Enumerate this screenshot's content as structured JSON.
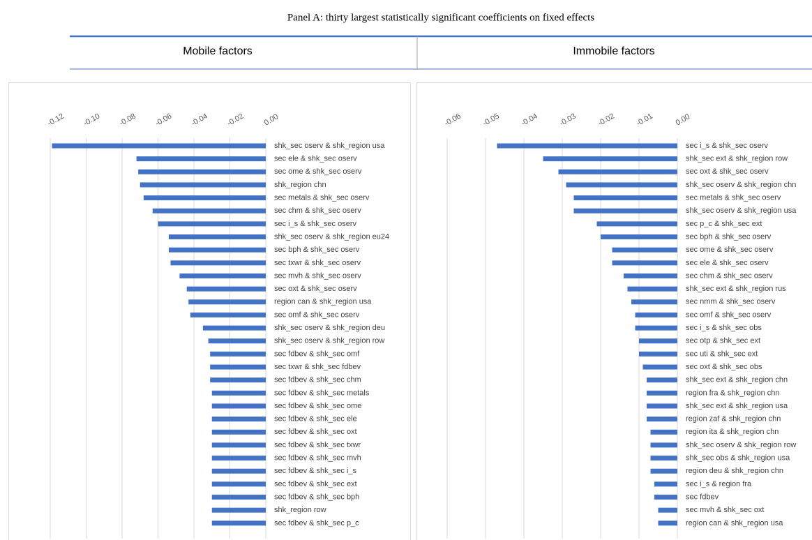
{
  "title": "Panel A: thirty largest statistically significant coefficients on fixed effects",
  "chart_data": [
    {
      "type": "bar",
      "orientation": "horizontal",
      "title": "Mobile factors",
      "color": "#4472c4",
      "grid": true,
      "xlim": [
        -0.12,
        0
      ],
      "xticks": [
        -0.12,
        {
          "value": -0.1,
          "label": "-0.10"
        },
        -0.08,
        -0.06,
        -0.04,
        -0.02,
        {
          "value": 0,
          "label": "0.00"
        }
      ],
      "categories": [
        "shk_sec oserv & shk_region usa",
        "sec ele & shk_sec oserv",
        "sec ome & shk_sec oserv",
        "shk_region chn",
        "sec metals & shk_sec oserv",
        "sec chm & shk_sec oserv",
        "sec i_s & shk_sec oserv",
        "shk_sec oserv & shk_region eu24",
        "sec bph & shk_sec oserv",
        "sec txwr & shk_sec oserv",
        "sec mvh & shk_sec oserv",
        "sec oxt & shk_sec oserv",
        "region can & shk_region usa",
        "sec omf & shk_sec oserv",
        "shk_sec oserv & shk_region deu",
        "shk_sec oserv & shk_region row",
        "sec fdbev & shk_sec omf",
        "sec txwr & shk_sec fdbev",
        "sec fdbev & shk_sec chm",
        "sec fdbev & shk_sec metals",
        "sec fdbev & shk_sec ome",
        "sec fdbev & shk_sec ele",
        "sec fdbev & shk_sec oxt",
        "sec fdbev & shk_sec txwr",
        "sec fdbev & shk_sec mvh",
        "sec fdbev & shk_sec i_s",
        "sec fdbev & shk_sec ext",
        "sec fdbev & shk_sec bph",
        "shk_region row",
        "sec fdbev & shk_sec p_c"
      ],
      "values": [
        -0.119,
        -0.072,
        -0.071,
        -0.07,
        -0.068,
        -0.063,
        -0.06,
        -0.054,
        -0.054,
        -0.053,
        -0.048,
        -0.044,
        -0.043,
        -0.042,
        -0.035,
        -0.032,
        -0.031,
        -0.031,
        -0.031,
        -0.03,
        -0.03,
        -0.03,
        -0.03,
        -0.03,
        -0.03,
        -0.03,
        -0.03,
        -0.03,
        -0.03,
        -0.03
      ]
    },
    {
      "type": "bar",
      "orientation": "horizontal",
      "title": "Immobile factors",
      "color": "#4472c4",
      "grid": true,
      "xlim": [
        -0.06,
        0
      ],
      "xticks": [
        -0.06,
        -0.05,
        -0.04,
        -0.03,
        -0.02,
        -0.01,
        {
          "value": 0,
          "label": "0.00"
        }
      ],
      "categories": [
        "sec i_s & shk_sec oserv",
        "shk_sec ext & shk_region row",
        "sec oxt & shk_sec oserv",
        "shk_sec oserv & shk_region chn",
        "sec metals & shk_sec oserv",
        "shk_sec oserv & shk_region usa",
        "sec p_c & shk_sec ext",
        "sec bph & shk_sec oserv",
        "sec ome & shk_sec oserv",
        "sec ele & shk_sec oserv",
        "sec chm & shk_sec oserv",
        "shk_sec ext & shk_region rus",
        "sec nmm & shk_sec oserv",
        "sec omf & shk_sec oserv",
        "sec i_s & shk_sec obs",
        "sec otp & shk_sec ext",
        "sec uti & shk_sec ext",
        "sec oxt & shk_sec obs",
        "shk_sec ext & shk_region chn",
        "region fra & shk_region chn",
        "shk_sec ext & shk_region usa",
        "region zaf & shk_region chn",
        "region ita & shk_region chn",
        "shk_sec oserv & shk_region row",
        "shk_sec obs & shk_region usa",
        "region deu & shk_region chn",
        "sec i_s & region fra",
        "sec fdbev",
        "sec mvh & shk_sec oxt",
        "region can & shk_region usa"
      ],
      "values": [
        -0.047,
        -0.035,
        -0.031,
        -0.029,
        -0.027,
        -0.027,
        -0.021,
        -0.02,
        -0.017,
        -0.017,
        -0.014,
        -0.013,
        -0.012,
        -0.011,
        -0.011,
        -0.01,
        -0.01,
        -0.009,
        -0.008,
        -0.008,
        -0.008,
        -0.008,
        -0.007,
        -0.007,
        -0.007,
        -0.007,
        -0.006,
        -0.006,
        -0.005,
        -0.005
      ]
    }
  ]
}
